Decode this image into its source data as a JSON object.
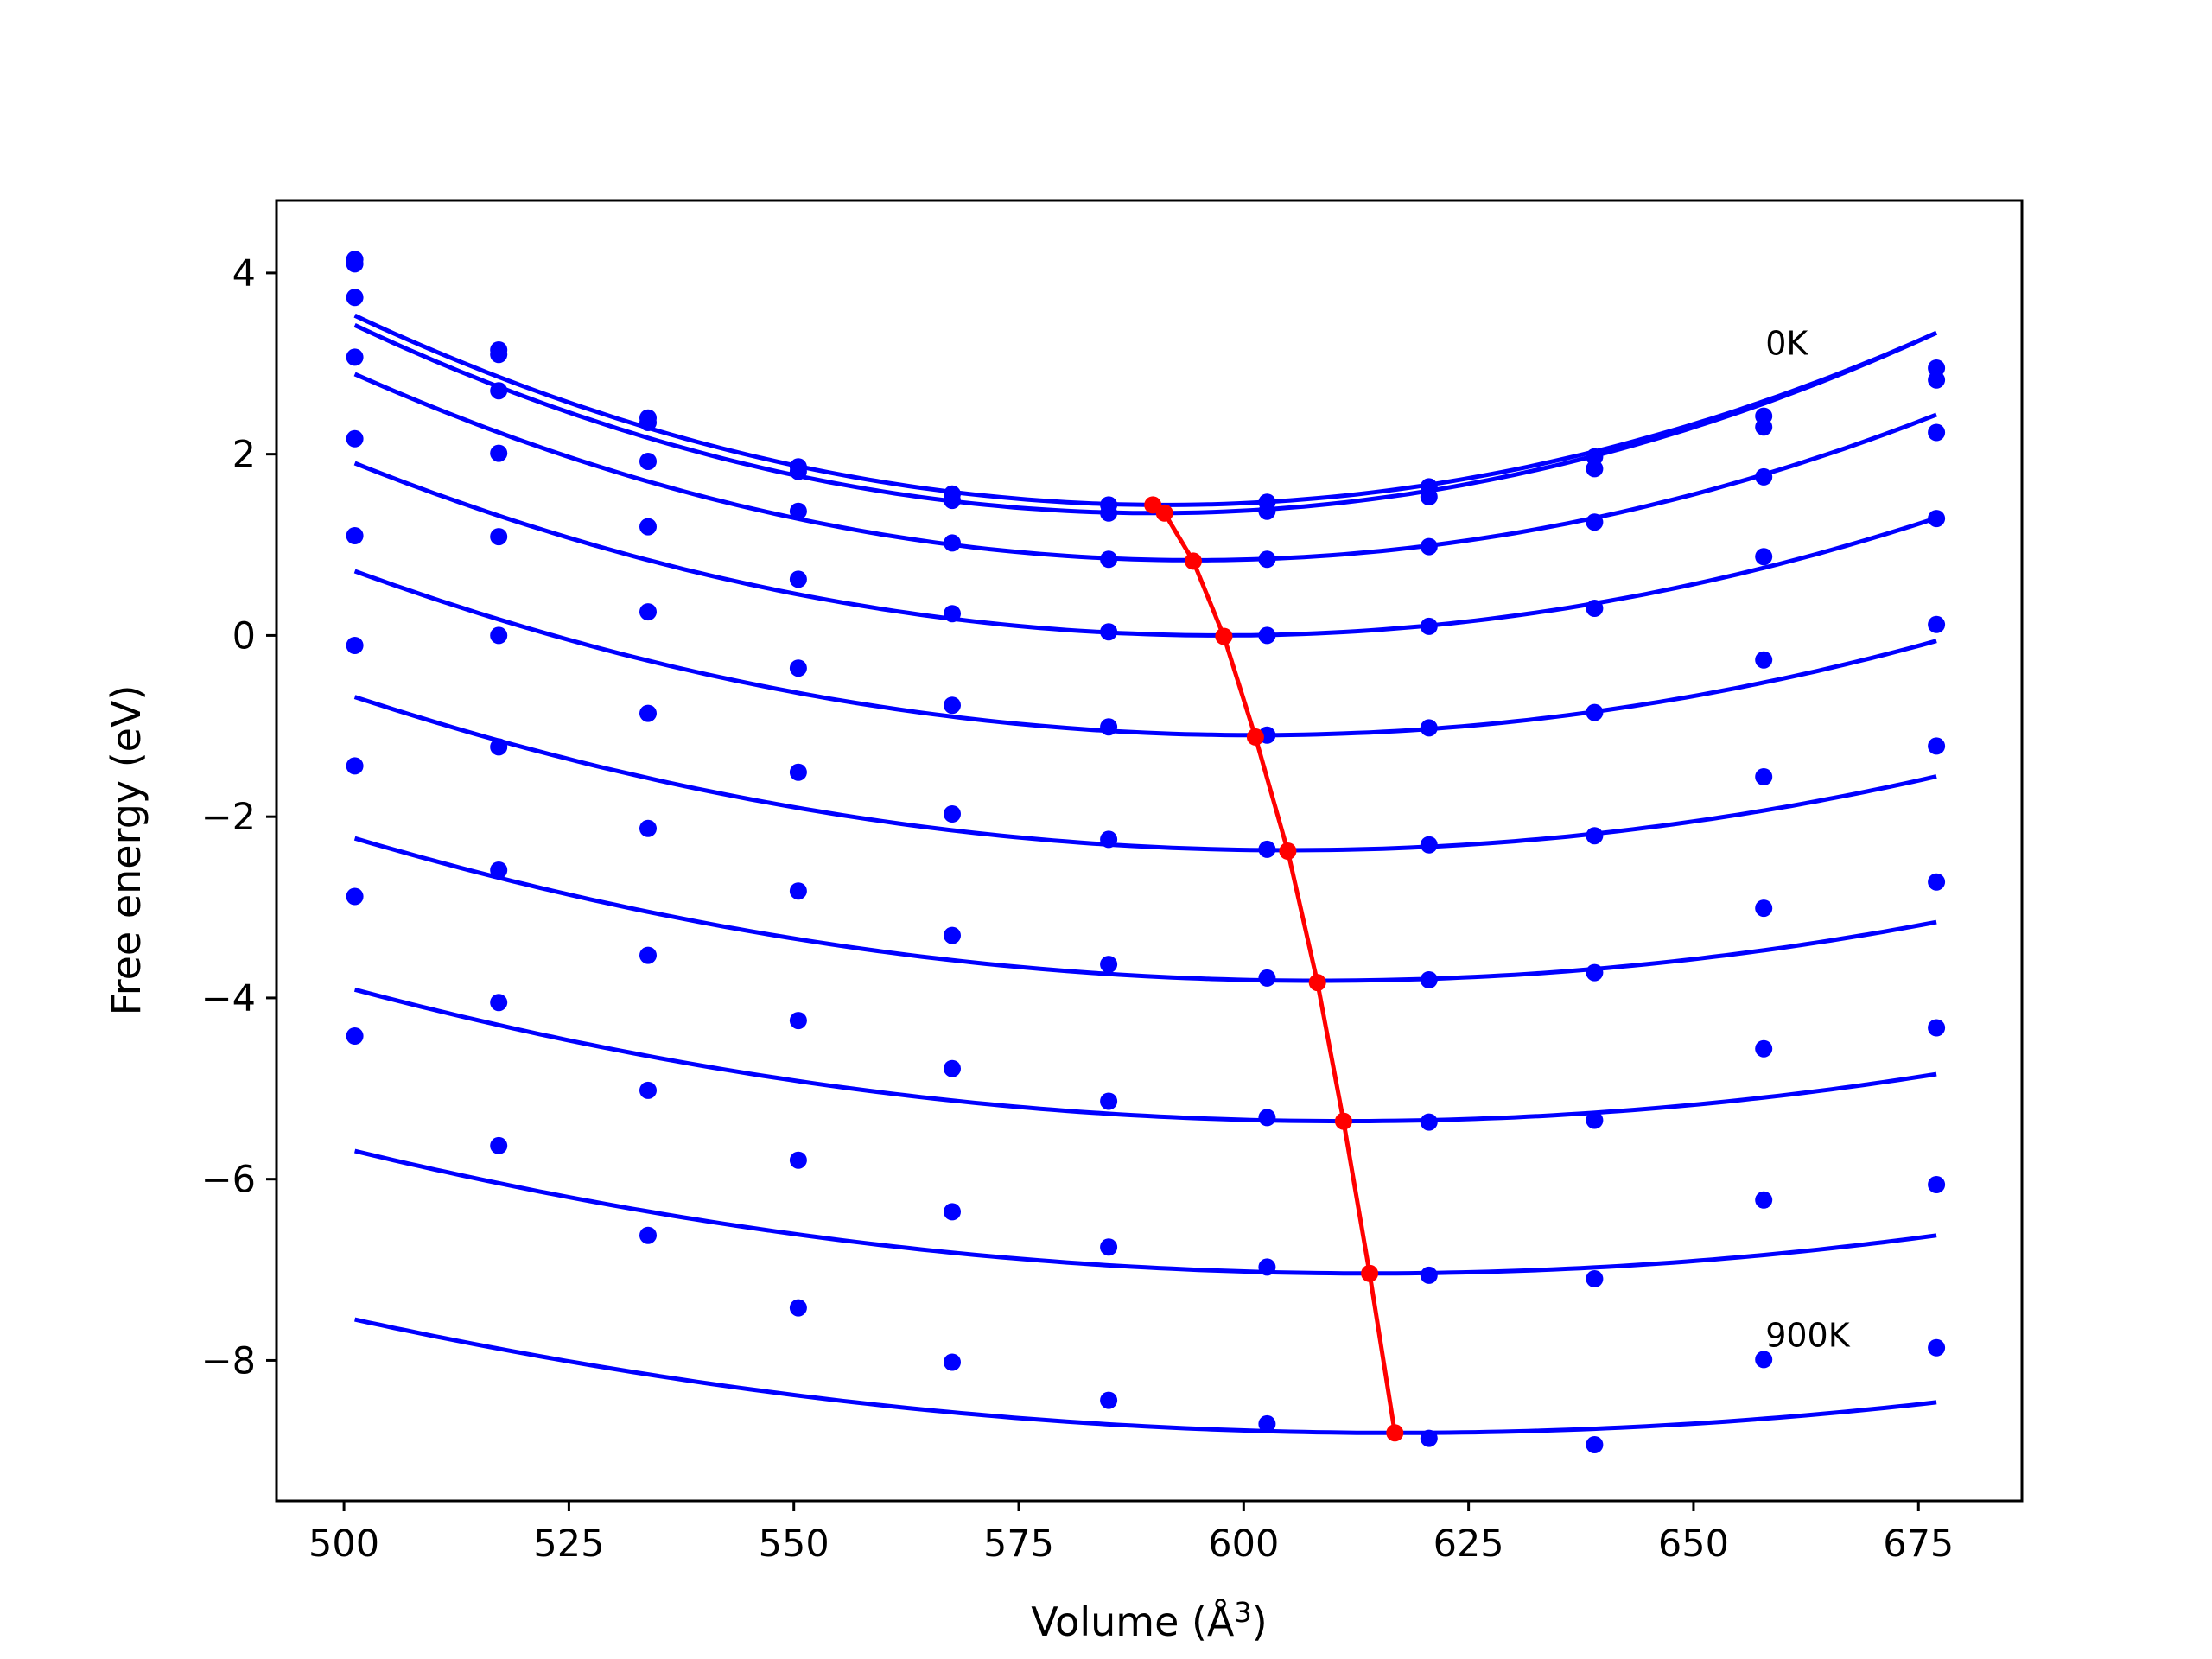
{
  "chart_data": {
    "type": "line",
    "title": "",
    "xlabel": "Volume (Å",
    "xlabel_sup": "3",
    "xlabel_close": ")",
    "ylabel": "Free energy (eV)",
    "xlim": [
      492.5,
      686.5
    ],
    "ylim": [
      -9.55,
      4.8
    ],
    "xticks": [
      500,
      525,
      550,
      575,
      600,
      625,
      650,
      675
    ],
    "yticks": [
      -8,
      -6,
      -4,
      -2,
      0,
      2,
      4
    ],
    "ytick_labels": [
      "−8",
      "−6",
      "−4",
      "−2",
      "0",
      "2",
      "4"
    ],
    "grid": false,
    "legend": "none",
    "colors": {
      "fit": "#0000ff",
      "points": "#0000ff",
      "minima": "#ff0000",
      "frame": "#000000"
    },
    "annotations": [
      {
        "text": "0K",
        "x": 658,
        "y": 3.1
      },
      {
        "text": "900K",
        "x": 658,
        "y": -7.85
      }
    ],
    "volumes": [
      501.2,
      517.2,
      533.8,
      550.5,
      567.6,
      585.0,
      602.6,
      620.6,
      639.0,
      657.8,
      677.0
    ],
    "series": [
      {
        "points": [
          4.15,
          3.15,
          2.4,
          1.86,
          1.56,
          1.44,
          1.47,
          1.64,
          1.97,
          2.42,
          2.95
        ],
        "fit": {
          "a": 0.000258,
          "vmin": 591.2,
          "fmin": 1.44
        }
      },
      {
        "points": [
          4.1,
          3.1,
          2.35,
          1.81,
          1.49,
          1.35,
          1.37,
          1.53,
          1.84,
          2.3,
          2.82
        ],
        "fit": {
          "a": 0.000263,
          "vmin": 590.0,
          "fmin": 1.35
        }
      },
      {
        "points": [
          3.73,
          2.7,
          1.92,
          1.37,
          1.02,
          0.84,
          0.84,
          0.98,
          1.25,
          1.75,
          2.24
        ],
        "fit": {
          "a": 0.000236,
          "vmin": 594.5,
          "fmin": 0.83
        }
      },
      {
        "points": [
          3.07,
          2.01,
          1.2,
          0.62,
          0.24,
          0.04,
          0.0,
          0.1,
          0.3,
          0.87,
          1.29
        ],
        "fit": {
          "a": 0.000205,
          "vmin": 597.5,
          "fmin": 0.0
        }
      },
      {
        "points": [
          2.17,
          1.09,
          0.26,
          -0.36,
          -0.77,
          -1.01,
          -1.1,
          -1.02,
          -0.85,
          -0.27,
          0.12
        ],
        "fit": {
          "a": 0.000181,
          "vmin": 601.2,
          "fmin": -1.1
        }
      },
      {
        "points": [
          1.1,
          0.0,
          -0.86,
          -1.51,
          -1.97,
          -2.25,
          -2.36,
          -2.31,
          -2.21,
          -1.56,
          -1.22
        ],
        "fit": {
          "a": 0.000157,
          "vmin": 605.0,
          "fmin": -2.37
        }
      },
      {
        "points": [
          -0.11,
          -1.23,
          -2.13,
          -2.82,
          -3.31,
          -3.63,
          -3.78,
          -3.8,
          -3.72,
          -3.01,
          -2.72
        ],
        "fit": {
          "a": 0.000137,
          "vmin": 608.3,
          "fmin": -3.81
        }
      },
      {
        "points": [
          -1.44,
          -2.59,
          -3.53,
          -4.25,
          -4.78,
          -5.14,
          -5.32,
          -5.37,
          -5.35,
          -4.56,
          -4.33
        ],
        "fit": {
          "a": 0.00012,
          "vmin": 611.2,
          "fmin": -5.36
        }
      },
      {
        "points": [
          -2.88,
          -4.05,
          -5.02,
          -5.79,
          -6.36,
          -6.75,
          -6.97,
          -7.06,
          -7.1,
          -6.23,
          -6.06
        ],
        "fit": {
          "a": 0.000106,
          "vmin": 614.1,
          "fmin": -7.04
        }
      },
      {
        "points": [
          -4.42,
          -5.63,
          -6.62,
          -7.42,
          -8.02,
          -8.44,
          -8.7,
          -8.86,
          -8.93,
          -7.99,
          -7.86
        ],
        "fit": {
          "a": 9.35e-05,
          "vmin": 616.9,
          "fmin": -8.8
        }
      }
    ],
    "minima": [
      {
        "x": 589.9,
        "y": 1.44
      },
      {
        "x": 591.2,
        "y": 1.35
      },
      {
        "x": 594.4,
        "y": 0.82
      },
      {
        "x": 597.8,
        "y": -0.01
      },
      {
        "x": 601.3,
        "y": -1.12
      },
      {
        "x": 604.9,
        "y": -2.38
      },
      {
        "x": 608.2,
        "y": -3.83
      },
      {
        "x": 611.1,
        "y": -5.36
      },
      {
        "x": 614.0,
        "y": -7.04
      },
      {
        "x": 616.8,
        "y": -8.8
      }
    ]
  }
}
